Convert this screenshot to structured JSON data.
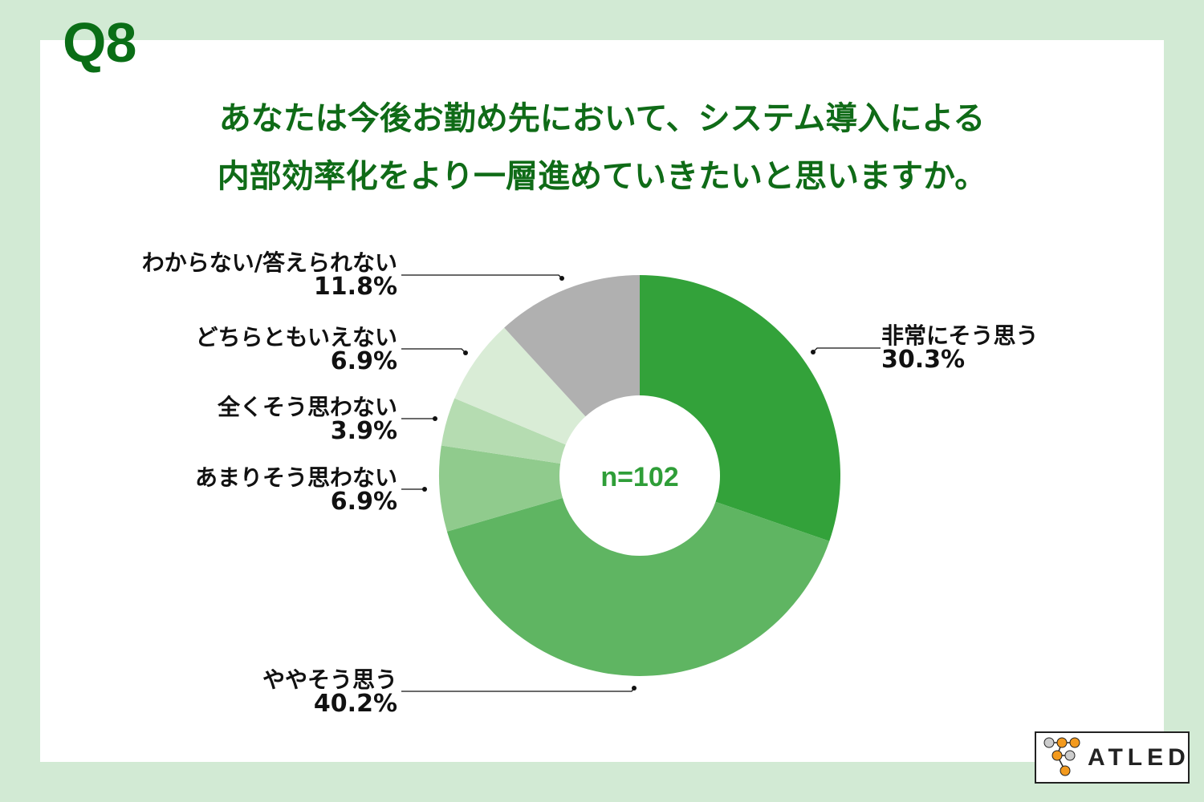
{
  "header": {
    "question_number": "Q8",
    "title_line1": "あなたは今後お勤め先において、システム導入による",
    "title_line2": "内部効率化をより一層進めていきたいと思いますか。"
  },
  "chart": {
    "center_label": "n=102",
    "labels": [
      {
        "text": "非常にそう思う",
        "pct": "30.3%"
      },
      {
        "text": "ややそう思う",
        "pct": "40.2%"
      },
      {
        "text": "あまりそう思わない",
        "pct": "6.9%"
      },
      {
        "text": "全くそう思わない",
        "pct": "3.9%"
      },
      {
        "text": "どちらともいえない",
        "pct": "6.9%"
      },
      {
        "text": "わからない/答えられない",
        "pct": "11.8%"
      }
    ]
  },
  "logo": {
    "text": "ATLED"
  },
  "colors": {
    "background": "#d2ead4",
    "title": "#0f6b17",
    "seg_very_much": "#33a23a",
    "seg_somewhat": "#5fb562",
    "seg_not_much": "#90cb8d",
    "seg_not_at_all": "#b5dcb1",
    "seg_neither": "#d9ecd6",
    "seg_unknown": "#b0b0b0",
    "logo_orange": "#f39a1e"
  },
  "chart_data": {
    "type": "pie",
    "subtype": "donut",
    "title": "Q8 あなたは今後お勤め先において、システム導入による内部効率化をより一層進めていきたいと思いますか。",
    "annotation": "n=102",
    "categories": [
      "非常にそう思う",
      "ややそう思う",
      "あまりそう思わない",
      "全くそう思わない",
      "どちらともいえない",
      "わからない/答えられない"
    ],
    "values": [
      30.3,
      40.2,
      6.9,
      3.9,
      6.9,
      11.8
    ],
    "unit": "%",
    "colors": [
      "#33a23a",
      "#5fb562",
      "#90cb8d",
      "#b5dcb1",
      "#d9ecd6",
      "#b0b0b0"
    ],
    "start_angle": "12 o'clock, clockwise",
    "legend": "leader-line labels"
  }
}
